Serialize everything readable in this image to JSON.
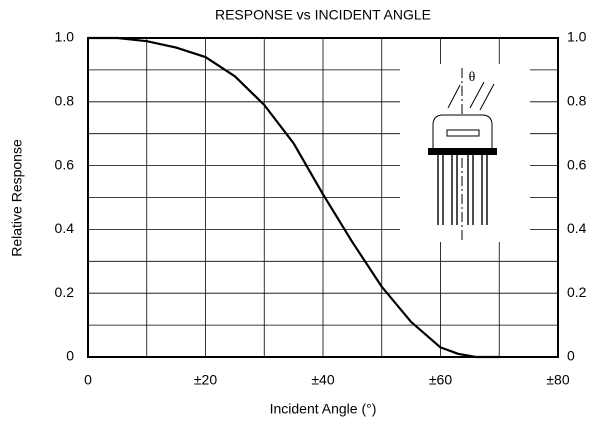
{
  "chart_data": {
    "type": "line",
    "title": "RESPONSE vs INCIDENT ANGLE",
    "xlabel": "Incident Angle (°)",
    "ylabel": "Relative Response",
    "x": [
      0,
      5,
      10,
      15,
      20,
      25,
      30,
      35,
      40,
      45,
      50,
      55,
      60,
      63,
      66,
      70
    ],
    "values": [
      1.0,
      1.0,
      0.99,
      0.97,
      0.94,
      0.88,
      0.79,
      0.67,
      0.51,
      0.36,
      0.22,
      0.11,
      0.03,
      0.01,
      0.0,
      0.0
    ],
    "color": "#000000",
    "xlim": [
      0,
      80
    ],
    "ylim": [
      0,
      1
    ],
    "xticks": [
      0,
      {
        "value": 20,
        "label": "±20"
      },
      {
        "value": 40,
        "label": "±40"
      },
      {
        "value": 60,
        "label": "±60"
      },
      {
        "value": 80,
        "label": "±80"
      }
    ],
    "yticks": [
      0,
      0.2,
      0.4,
      0.6,
      0.8,
      {
        "value": 1,
        "label": "1.0"
      }
    ],
    "xminorticks": [
      10,
      30,
      50,
      70
    ],
    "yminorticks": [
      0.1,
      0.3,
      0.5,
      0.7,
      0.9
    ],
    "grid": true,
    "inset_label": "θ"
  }
}
